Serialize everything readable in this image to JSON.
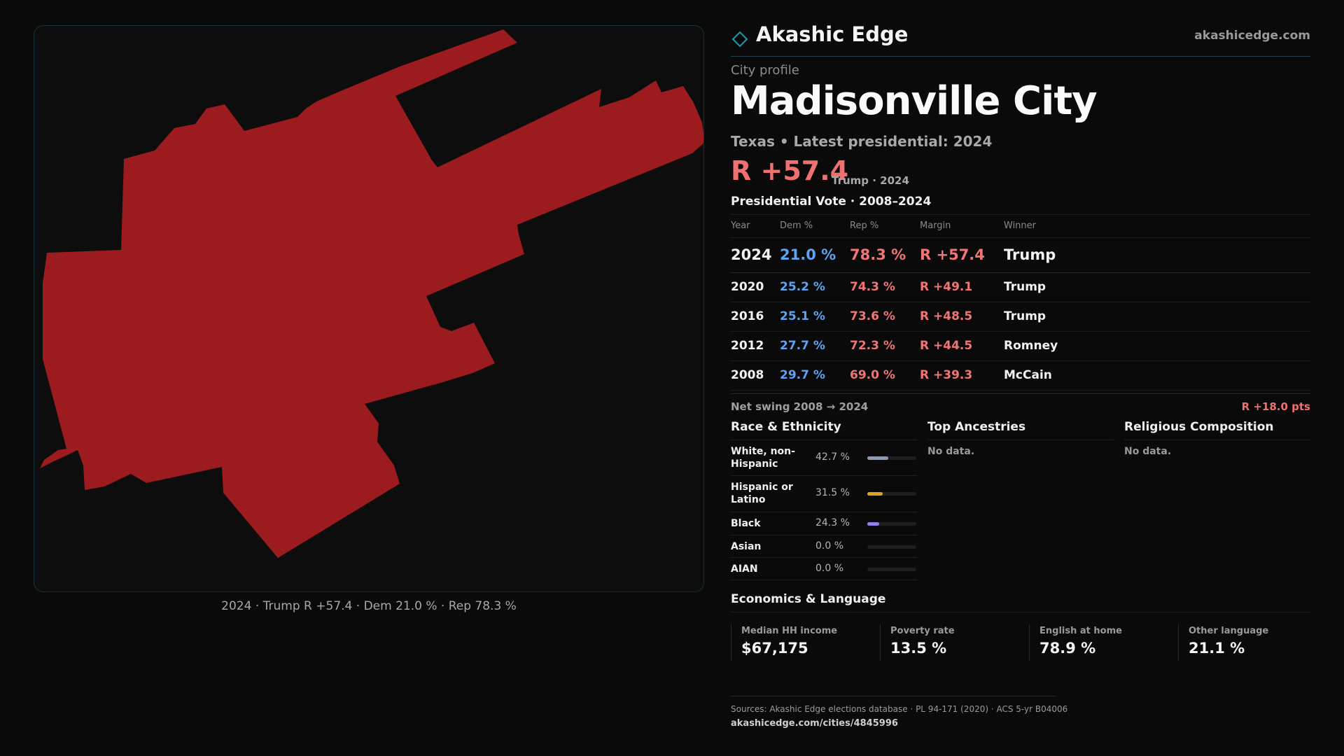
{
  "brand": {
    "name": "Akashic Edge",
    "url": "akashicedge.com"
  },
  "profile": {
    "kicker": "City profile",
    "name": "Madisonville City",
    "subtitle": "Texas • Latest presidential: 2024",
    "margin": "R +57.4",
    "margin_note": "Trump · 2024"
  },
  "map": {
    "caption": "2024 · Trump R +57.4 · Dem 21.0 % · Rep 78.3 %",
    "fill_color": "#9b1b1f"
  },
  "vote": {
    "title": "Presidential Vote · 2008–2024",
    "headers": {
      "year": "Year",
      "dem": "Dem %",
      "rep": "Rep %",
      "margin": "Margin",
      "winner": "Winner"
    },
    "rows": [
      {
        "year": "2024",
        "dem": "21.0 %",
        "rep": "78.3 %",
        "margin": "R +57.4",
        "winner": "Trump"
      },
      {
        "year": "2020",
        "dem": "25.2 %",
        "rep": "74.3 %",
        "margin": "R +49.1",
        "winner": "Trump"
      },
      {
        "year": "2016",
        "dem": "25.1 %",
        "rep": "73.6 %",
        "margin": "R +48.5",
        "winner": "Trump"
      },
      {
        "year": "2012",
        "dem": "27.7 %",
        "rep": "72.3 %",
        "margin": "R +44.5",
        "winner": "Romney"
      },
      {
        "year": "2008",
        "dem": "29.7 %",
        "rep": "69.0 %",
        "margin": "R +39.3",
        "winner": "McCain"
      }
    ],
    "swing_label": "Net swing 2008 → 2024",
    "swing_value": "R +18.0 pts"
  },
  "race": {
    "title": "Race & Ethnicity",
    "rows": [
      {
        "label": "White, non-Hispanic",
        "pct": "42.7 %",
        "share": 0.427,
        "color": "#8e9aab"
      },
      {
        "label": "Hispanic or Latino",
        "pct": "31.5 %",
        "share": 0.315,
        "color": "#e0a020"
      },
      {
        "label": "Black",
        "pct": "24.3 %",
        "share": 0.243,
        "color": "#9a7ee8"
      },
      {
        "label": "Asian",
        "pct": "0.0 %",
        "share": 0.0,
        "color": "#8e9aab"
      },
      {
        "label": "AIAN",
        "pct": "0.0 %",
        "share": 0.0,
        "color": "#8e9aab"
      }
    ]
  },
  "ancestries": {
    "title": "Top Ancestries",
    "empty": "No data."
  },
  "religion": {
    "title": "Religious Composition",
    "empty": "No data."
  },
  "economics": {
    "title": "Economics & Language",
    "stats": [
      {
        "label": "Median HH income",
        "value": "$67,175"
      },
      {
        "label": "Poverty rate",
        "value": "13.5 %"
      },
      {
        "label": "English at home",
        "value": "78.9 %"
      },
      {
        "label": "Other language",
        "value": "21.1 %"
      }
    ]
  },
  "footer": {
    "sources": "Sources: Akashic Edge elections database · PL 94-171 (2020) · ACS 5-yr B04006",
    "url": "akashicedge.com/cities/4845996"
  }
}
